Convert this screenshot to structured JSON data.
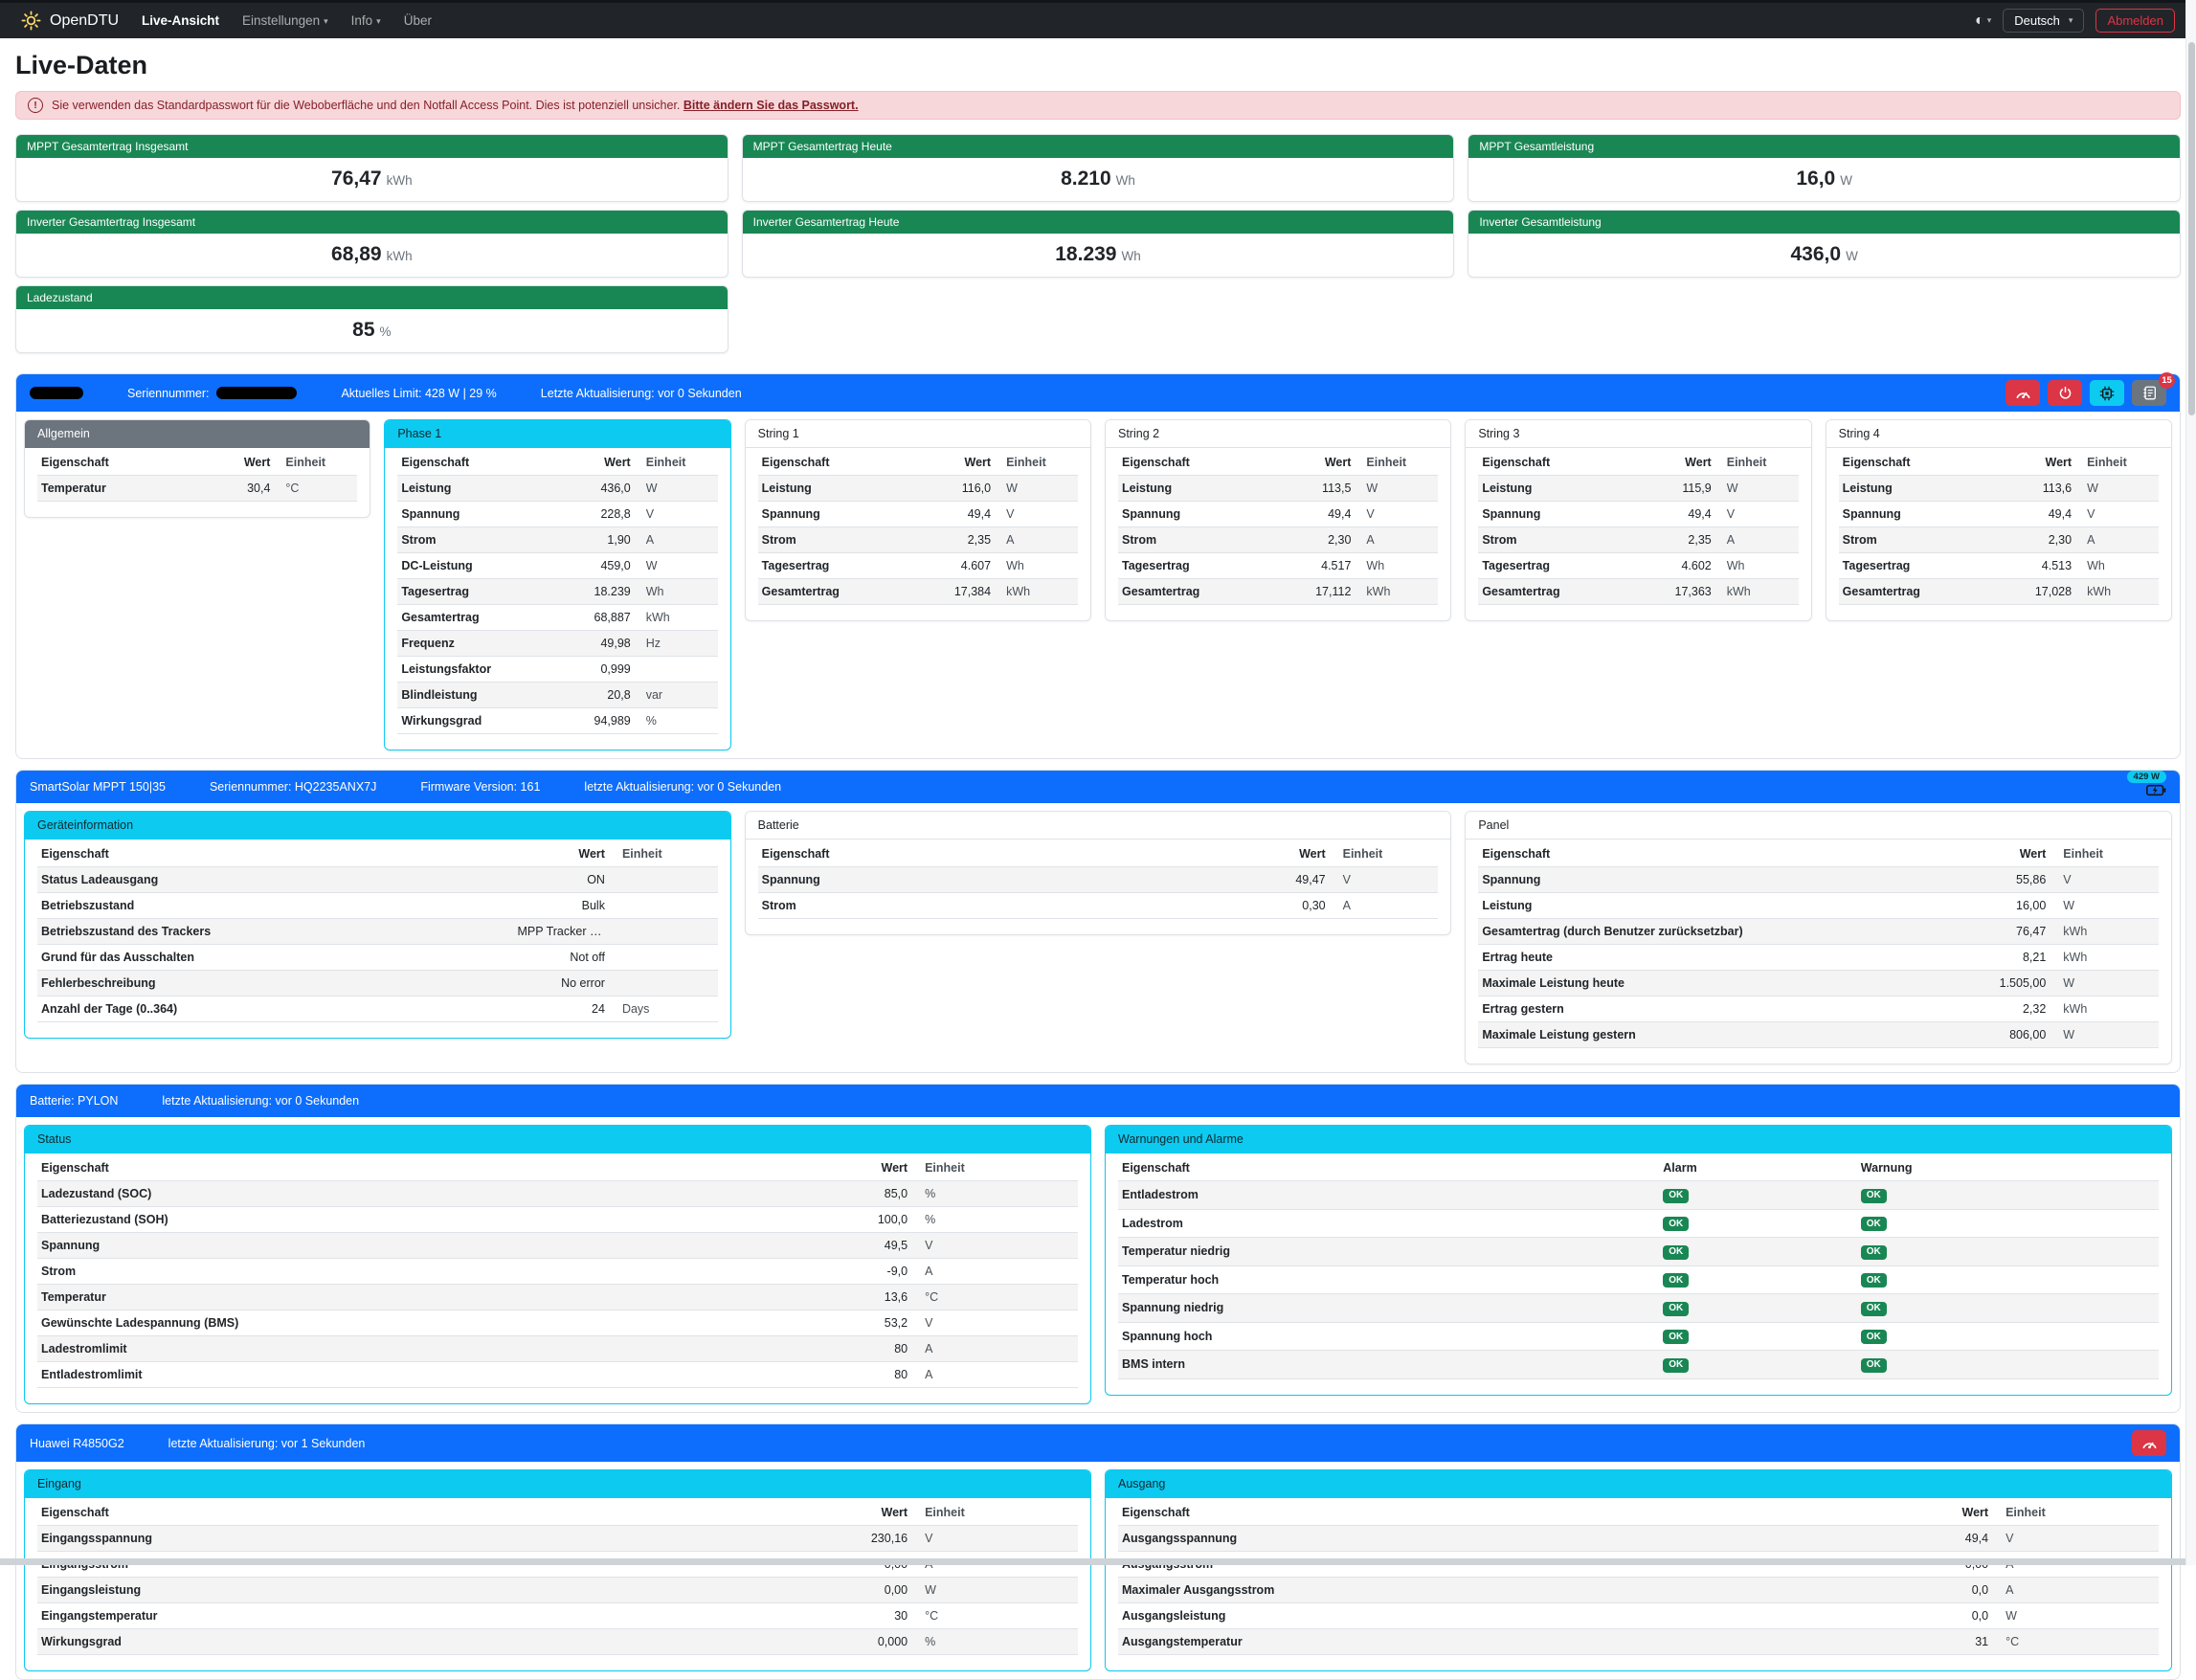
{
  "colors": {
    "primary_blue": "#0d6efd",
    "success_green": "#198754",
    "info_cyan": "#0dcaf0",
    "danger_red": "#dc3545",
    "secondary_gray": "#6c757d",
    "alert_bg": "#f8d7da",
    "alert_text": "#842029",
    "navbar_bg": "#212529"
  },
  "navbar": {
    "brand": "OpenDTU",
    "logo_icon": "sun-icon",
    "items": [
      {
        "label": "Live-Ansicht",
        "active": true,
        "caret": false
      },
      {
        "label": "Einstellungen",
        "active": false,
        "caret": true
      },
      {
        "label": "Info",
        "active": false,
        "caret": true
      },
      {
        "label": "Über",
        "active": false,
        "caret": false
      }
    ],
    "theme_icon": "circle-half-icon",
    "language_selected": "Deutsch",
    "logout_label": "Abmelden"
  },
  "page": {
    "title": "Live-Daten"
  },
  "alert": {
    "icon": "exclamation-circle-icon",
    "text": "Sie verwenden das Standardpasswort für die Weboberfläche und den Notfall Access Point. Dies ist potenziell unsicher.",
    "link_text": "Bitte ändern Sie das Passwort."
  },
  "summary_cards": [
    {
      "title": "MPPT Gesamtertrag Insgesamt",
      "value": "76,47",
      "unit": "kWh"
    },
    {
      "title": "MPPT Gesamtertrag Heute",
      "value": "8.210",
      "unit": "Wh"
    },
    {
      "title": "MPPT Gesamtleistung",
      "value": "16,0",
      "unit": "W"
    },
    {
      "title": "Inverter Gesamtertrag Insgesamt",
      "value": "68,89",
      "unit": "kWh"
    },
    {
      "title": "Inverter Gesamtertrag Heute",
      "value": "18.239",
      "unit": "Wh"
    },
    {
      "title": "Inverter Gesamtleistung",
      "value": "436,0",
      "unit": "W"
    },
    {
      "title": "Ladezustand",
      "value": "85",
      "unit": "%"
    }
  ],
  "inverter_section": {
    "header": {
      "name_redacted": true,
      "serial_label": "Seriennummer:",
      "serial_redacted": true,
      "limit": "Aktuelles Limit: 428 W | 29 %",
      "updated": "Letzte Aktualisierung: vor 0 Sekunden",
      "buttons": [
        {
          "icon": "speedometer-icon",
          "color": "red"
        },
        {
          "icon": "power-icon",
          "color": "red"
        },
        {
          "icon": "cpu-chip-icon",
          "color": "cyan"
        },
        {
          "icon": "journal-icon",
          "color": "gray",
          "badge": "15"
        }
      ]
    },
    "tables": [
      {
        "title": "Allgemein",
        "variant": "secondary",
        "columns": [
          "Eigenschaft",
          "Wert",
          "Einheit"
        ],
        "rows": [
          [
            "Temperatur",
            "30,4",
            "°C"
          ]
        ]
      },
      {
        "title": "Phase 1",
        "variant": "info",
        "columns": [
          "Eigenschaft",
          "Wert",
          "Einheit"
        ],
        "rows": [
          [
            "Leistung",
            "436,0",
            "W"
          ],
          [
            "Spannung",
            "228,8",
            "V"
          ],
          [
            "Strom",
            "1,90",
            "A"
          ],
          [
            "DC-Leistung",
            "459,0",
            "W"
          ],
          [
            "Tagesertrag",
            "18.239",
            "Wh"
          ],
          [
            "Gesamtertrag",
            "68,887",
            "kWh"
          ],
          [
            "Frequenz",
            "49,98",
            "Hz"
          ],
          [
            "Leistungsfaktor",
            "0,999",
            ""
          ],
          [
            "Blindleistung",
            "20,8",
            "var"
          ],
          [
            "Wirkungsgrad",
            "94,989",
            "%"
          ]
        ]
      },
      {
        "title": "String 1",
        "variant": "plain",
        "columns": [
          "Eigenschaft",
          "Wert",
          "Einheit"
        ],
        "rows": [
          [
            "Leistung",
            "116,0",
            "W"
          ],
          [
            "Spannung",
            "49,4",
            "V"
          ],
          [
            "Strom",
            "2,35",
            "A"
          ],
          [
            "Tagesertrag",
            "4.607",
            "Wh"
          ],
          [
            "Gesamtertrag",
            "17,384",
            "kWh"
          ]
        ]
      },
      {
        "title": "String 2",
        "variant": "plain",
        "columns": [
          "Eigenschaft",
          "Wert",
          "Einheit"
        ],
        "rows": [
          [
            "Leistung",
            "113,5",
            "W"
          ],
          [
            "Spannung",
            "49,4",
            "V"
          ],
          [
            "Strom",
            "2,30",
            "A"
          ],
          [
            "Tagesertrag",
            "4.517",
            "Wh"
          ],
          [
            "Gesamtertrag",
            "17,112",
            "kWh"
          ]
        ]
      },
      {
        "title": "String 3",
        "variant": "plain",
        "columns": [
          "Eigenschaft",
          "Wert",
          "Einheit"
        ],
        "rows": [
          [
            "Leistung",
            "115,9",
            "W"
          ],
          [
            "Spannung",
            "49,4",
            "V"
          ],
          [
            "Strom",
            "2,35",
            "A"
          ],
          [
            "Tagesertrag",
            "4.602",
            "Wh"
          ],
          [
            "Gesamtertrag",
            "17,363",
            "kWh"
          ]
        ]
      },
      {
        "title": "String 4",
        "variant": "plain",
        "columns": [
          "Eigenschaft",
          "Wert",
          "Einheit"
        ],
        "rows": [
          [
            "Leistung",
            "113,6",
            "W"
          ],
          [
            "Spannung",
            "49,4",
            "V"
          ],
          [
            "Strom",
            "2,30",
            "A"
          ],
          [
            "Tagesertrag",
            "4.513",
            "Wh"
          ],
          [
            "Gesamtertrag",
            "17,028",
            "kWh"
          ]
        ]
      }
    ]
  },
  "mppt_section": {
    "header": {
      "title": "SmartSolar MPPT 150|35",
      "serial": "Seriennummer: HQ2235ANX7J",
      "firmware": "Firmware Version: 161",
      "updated": "letzte Aktualisierung: vor 0 Sekunden",
      "power_badge": "429 W",
      "power_icon": "battery-charging-icon"
    },
    "tables": [
      {
        "title": "Geräteinformation",
        "variant": "info",
        "columns": [
          "Eigenschaft",
          "Wert",
          "Einheit"
        ],
        "rows": [
          [
            "Status Ladeausgang",
            "ON",
            ""
          ],
          [
            "Betriebszustand",
            "Bulk",
            ""
          ],
          [
            "Betriebszustand des Trackers",
            "MPP Tracker active",
            ""
          ],
          [
            "Grund für das Ausschalten",
            "Not off",
            ""
          ],
          [
            "Fehlerbeschreibung",
            "No error",
            ""
          ],
          [
            "Anzahl der Tage (0..364)",
            "24",
            "Days"
          ]
        ]
      },
      {
        "title": "Batterie",
        "variant": "plain",
        "columns": [
          "Eigenschaft",
          "Wert",
          "Einheit"
        ],
        "rows": [
          [
            "Spannung",
            "49,47",
            "V"
          ],
          [
            "Strom",
            "0,30",
            "A"
          ]
        ]
      },
      {
        "title": "Panel",
        "variant": "plain",
        "columns": [
          "Eigenschaft",
          "Wert",
          "Einheit"
        ],
        "rows": [
          [
            "Spannung",
            "55,86",
            "V"
          ],
          [
            "Leistung",
            "16,00",
            "W"
          ],
          [
            "Gesamtertrag (durch Benutzer zurücksetzbar)",
            "76,47",
            "kWh"
          ],
          [
            "Ertrag heute",
            "8,21",
            "kWh"
          ],
          [
            "Maximale Leistung heute",
            "1.505,00",
            "W"
          ],
          [
            "Ertrag gestern",
            "2,32",
            "kWh"
          ],
          [
            "Maximale Leistung gestern",
            "806,00",
            "W"
          ]
        ]
      }
    ]
  },
  "battery_section": {
    "header": {
      "title": "Batterie: PYLON",
      "updated": "letzte Aktualisierung: vor 0 Sekunden"
    },
    "tables": [
      {
        "title": "Status",
        "variant": "info",
        "columns": [
          "Eigenschaft",
          "Wert",
          "Einheit"
        ],
        "rows": [
          [
            "Ladezustand (SOC)",
            "85,0",
            "%"
          ],
          [
            "Batteriezustand (SOH)",
            "100,0",
            "%"
          ],
          [
            "Spannung",
            "49,5",
            "V"
          ],
          [
            "Strom",
            "-9,0",
            "A"
          ],
          [
            "Temperatur",
            "13,6",
            "°C"
          ],
          [
            "Gewünschte Ladespannung (BMS)",
            "53,2",
            "V"
          ],
          [
            "Ladestromlimit",
            "80",
            "A"
          ],
          [
            "Entladestromlimit",
            "80",
            "A"
          ]
        ]
      },
      {
        "title": "Warnungen und Alarme",
        "variant": "info",
        "columns": [
          "Eigenschaft",
          "Alarm",
          "Warnung"
        ],
        "rows": [
          [
            "Entladestrom",
            {
              "badge": "OK"
            },
            {
              "badge": "OK"
            }
          ],
          [
            "Ladestrom",
            {
              "badge": "OK"
            },
            {
              "badge": "OK"
            }
          ],
          [
            "Temperatur niedrig",
            {
              "badge": "OK"
            },
            {
              "badge": "OK"
            }
          ],
          [
            "Temperatur hoch",
            {
              "badge": "OK"
            },
            {
              "badge": "OK"
            }
          ],
          [
            "Spannung niedrig",
            {
              "badge": "OK"
            },
            {
              "badge": "OK"
            }
          ],
          [
            "Spannung hoch",
            {
              "badge": "OK"
            },
            {
              "badge": "OK"
            }
          ],
          [
            "BMS intern",
            {
              "badge": "OK"
            },
            {
              "badge": "OK"
            }
          ]
        ]
      }
    ]
  },
  "psu_section": {
    "header": {
      "title": "Huawei R4850G2",
      "updated": "letzte Aktualisierung: vor 1 Sekunden",
      "buttons": [
        {
          "icon": "speedometer-icon",
          "color": "red"
        }
      ]
    },
    "tables": [
      {
        "title": "Eingang",
        "variant": "info",
        "columns": [
          "Eigenschaft",
          "Wert",
          "Einheit"
        ],
        "rows": [
          [
            "Eingangsspannung",
            "230,16",
            "V"
          ],
          [
            "Eingangsstrom",
            "0,00",
            "A"
          ],
          [
            "Eingangsleistung",
            "0,00",
            "W"
          ],
          [
            "Eingangstemperatur",
            "30",
            "°C"
          ],
          [
            "Wirkungsgrad",
            "0,000",
            "%"
          ]
        ]
      },
      {
        "title": "Ausgang",
        "variant": "info",
        "columns": [
          "Eigenschaft",
          "Wert",
          "Einheit"
        ],
        "rows": [
          [
            "Ausgangsspannung",
            "49,4",
            "V"
          ],
          [
            "Ausgangsstrom",
            "0,00",
            "A"
          ],
          [
            "Maximaler Ausgangsstrom",
            "0,0",
            "A"
          ],
          [
            "Ausgangsleistung",
            "0,0",
            "W"
          ],
          [
            "Ausgangstemperatur",
            "31",
            "°C"
          ]
        ]
      }
    ]
  }
}
